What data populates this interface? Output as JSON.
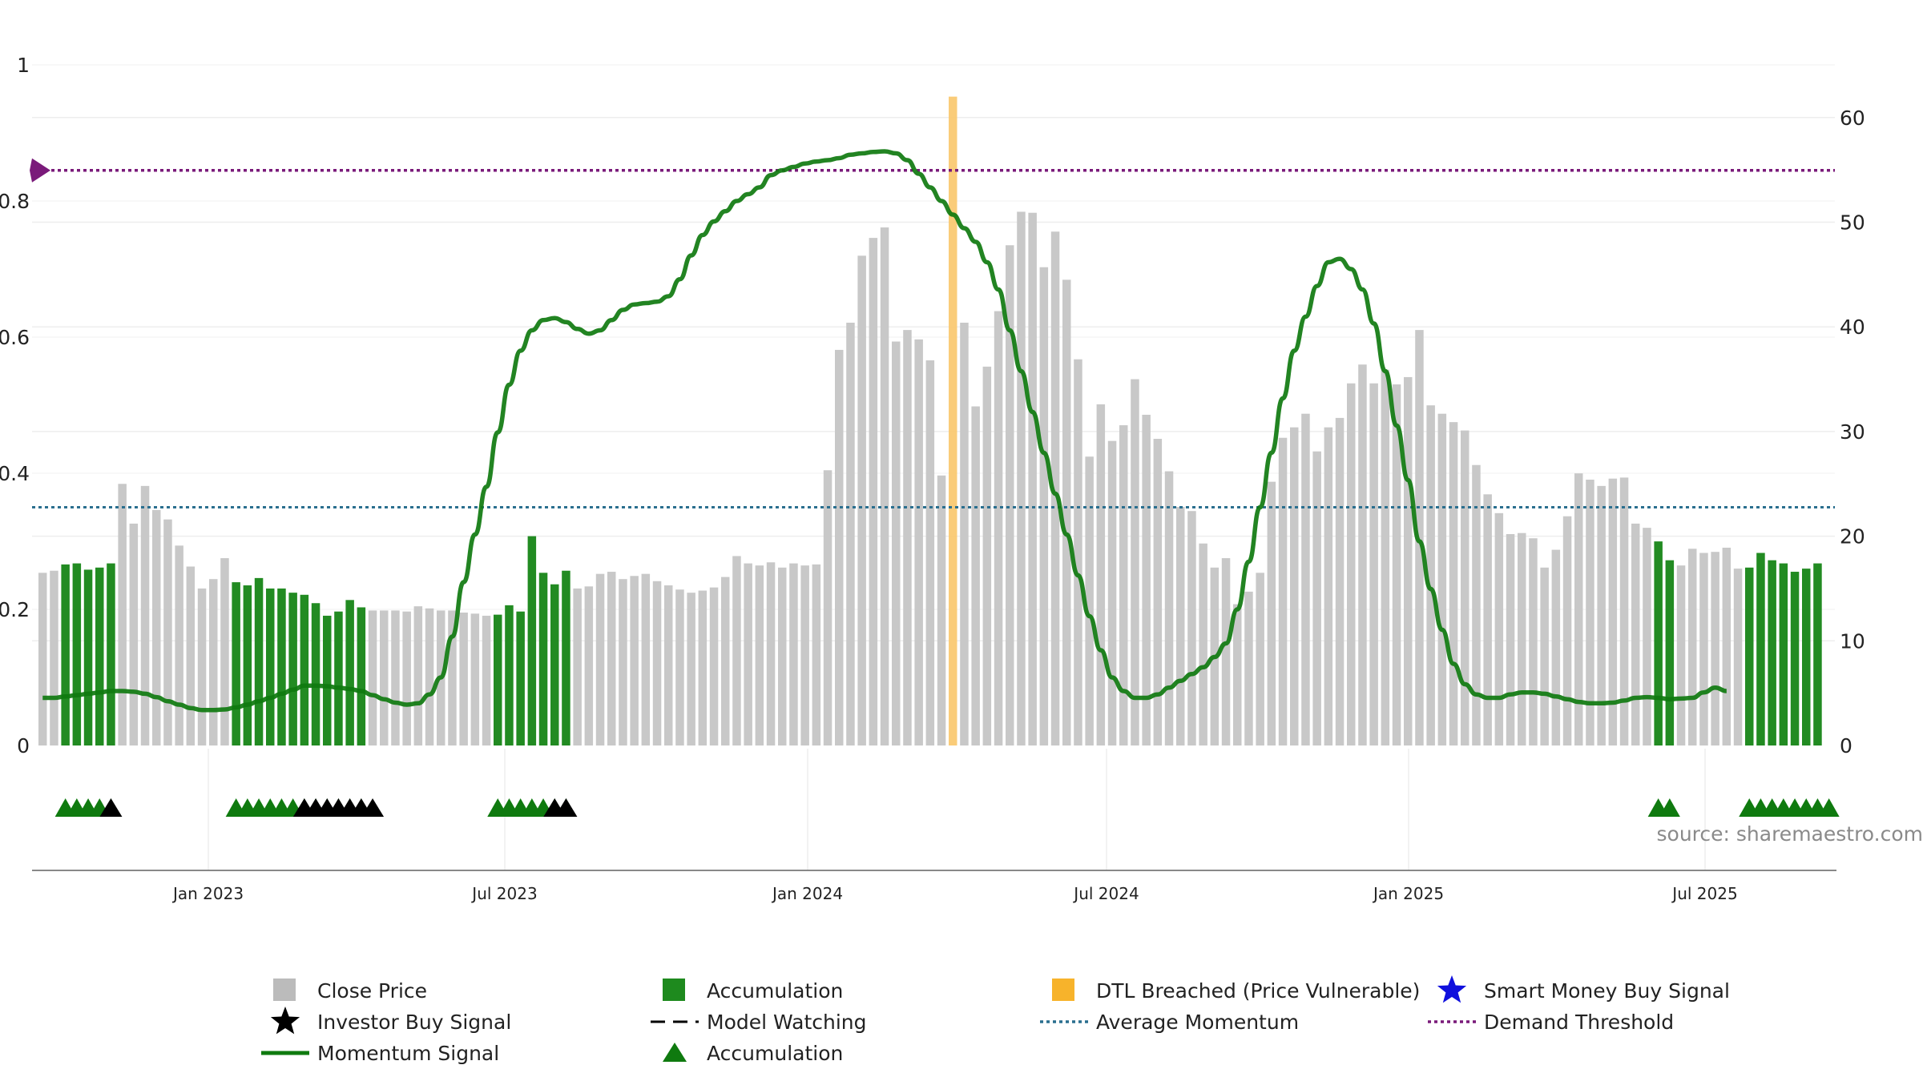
{
  "chart_data": {
    "type": "bar",
    "source_text": "source: sharemaestro.com",
    "x_ticks": [
      "Jan 2023",
      "Jul 2023",
      "Jan 2024",
      "Jul 2024",
      "Jan 2025",
      "Jul 2025"
    ],
    "left_axis": {
      "ticks": [
        "0",
        "0.2",
        "0.4",
        "0.6",
        "0.8",
        "1"
      ],
      "range": [
        0,
        1
      ]
    },
    "right_axis": {
      "ticks": [
        "0",
        "10",
        "20",
        "30",
        "40",
        "50",
        "60"
      ],
      "range": [
        0,
        65
      ]
    },
    "legend": [
      {
        "label": "Close Price",
        "symbol": "square",
        "color": "#bbbbbb"
      },
      {
        "label": "Accumulation",
        "symbol": "square",
        "color": "#1e8a1e"
      },
      {
        "label": "DTL Breached (Price Vulnerable)",
        "symbol": "square",
        "color": "#f7b32b"
      },
      {
        "label": "Smart Money Buy Signal",
        "symbol": "star",
        "color": "#1010dd"
      },
      {
        "label": "Investor Buy Signal",
        "symbol": "star",
        "color": "#000000"
      },
      {
        "label": "Model Watching",
        "symbol": "dash",
        "color": "#000000"
      },
      {
        "label": "Average Momentum",
        "symbol": "dotted",
        "color": "#2a6f8f"
      },
      {
        "label": "Demand Threshold",
        "symbol": "dotted",
        "color": "#7a1a7a"
      },
      {
        "label": "Momentum Signal",
        "symbol": "line",
        "color": "#0f7a0f"
      },
      {
        "label": "Accumulation",
        "symbol": "triangle",
        "color": "#0f7a0f"
      }
    ],
    "colors": {
      "price": "#c8c8c8",
      "accumulation": "#228b22",
      "dtl": "#f9c66a",
      "momentum": "#0f7a0f",
      "avg_momentum": "#2a6f8f",
      "demand": "#7a1a7a"
    },
    "average_momentum": 0.35,
    "demand_threshold": 0.845,
    "dtl_bar_index": 80,
    "close_prices": [
      16.5,
      16.7,
      17.3,
      17.4,
      16.8,
      17.0,
      17.4,
      25.0,
      21.2,
      24.8,
      22.5,
      21.6,
      19.1,
      17.1,
      15.0,
      15.9,
      17.9,
      15.6,
      15.3,
      16.0,
      15.0,
      15.0,
      14.6,
      14.4,
      13.6,
      12.4,
      12.8,
      13.9,
      13.2,
      12.9,
      12.9,
      12.9,
      12.8,
      13.3,
      13.1,
      12.9,
      12.9,
      12.7,
      12.6,
      12.4,
      12.5,
      13.4,
      12.8,
      20.0,
      16.5,
      15.4,
      16.7,
      15.0,
      15.2,
      16.4,
      16.6,
      15.9,
      16.2,
      16.4,
      15.7,
      15.3,
      14.9,
      14.6,
      14.8,
      15.1,
      16.1,
      18.1,
      17.4,
      17.2,
      17.5,
      17.0,
      17.4,
      17.2,
      17.3,
      26.3,
      37.8,
      40.4,
      46.8,
      48.5,
      49.5,
      38.6,
      39.7,
      38.8,
      36.8,
      25.8,
      62.0,
      40.4,
      32.4,
      36.2,
      41.5,
      47.8,
      51.0,
      50.9,
      45.7,
      49.1,
      44.5,
      36.9,
      27.6,
      32.6,
      29.1,
      30.6,
      35.0,
      31.6,
      29.3,
      26.2,
      22.8,
      22.4,
      19.3,
      17.0,
      17.9,
      13.5,
      14.7,
      16.5,
      25.2,
      29.4,
      30.4,
      31.7,
      28.1,
      30.4,
      31.3,
      34.6,
      36.4,
      34.6,
      35.9,
      34.5,
      35.2,
      39.7,
      32.5,
      31.7,
      30.9,
      30.1,
      26.8,
      24.0,
      22.2,
      20.2,
      20.3,
      19.8,
      17.0,
      18.7,
      21.9,
      26.0,
      25.4,
      24.8,
      25.5,
      25.6,
      21.2,
      20.8,
      19.5,
      17.7,
      17.2,
      18.8,
      18.4,
      18.5,
      18.9,
      16.9,
      17.0,
      18.4,
      17.7,
      17.4,
      16.6,
      16.9,
      17.4
    ],
    "accumulation_bar_indices": [
      2,
      3,
      4,
      5,
      6,
      17,
      18,
      19,
      20,
      21,
      22,
      23,
      24,
      25,
      26,
      27,
      28,
      40,
      41,
      42,
      43,
      44,
      45,
      46,
      142,
      143,
      150,
      151,
      152,
      153,
      154,
      155,
      156,
      157
    ],
    "momentum_signal": [
      0.07,
      0.07,
      0.072,
      0.074,
      0.076,
      0.078,
      0.08,
      0.08,
      0.079,
      0.076,
      0.071,
      0.065,
      0.06,
      0.055,
      0.052,
      0.052,
      0.053,
      0.056,
      0.06,
      0.065,
      0.07,
      0.076,
      0.082,
      0.088,
      0.088,
      0.087,
      0.085,
      0.083,
      0.08,
      0.074,
      0.068,
      0.063,
      0.06,
      0.062,
      0.075,
      0.1,
      0.16,
      0.24,
      0.31,
      0.38,
      0.46,
      0.53,
      0.58,
      0.61,
      0.625,
      0.628,
      0.622,
      0.612,
      0.605,
      0.61,
      0.625,
      0.64,
      0.648,
      0.65,
      0.652,
      0.66,
      0.685,
      0.72,
      0.75,
      0.77,
      0.785,
      0.8,
      0.81,
      0.82,
      0.838,
      0.845,
      0.85,
      0.855,
      0.858,
      0.86,
      0.863,
      0.868,
      0.87,
      0.872,
      0.873,
      0.87,
      0.86,
      0.84,
      0.82,
      0.8,
      0.78,
      0.76,
      0.74,
      0.71,
      0.67,
      0.61,
      0.55,
      0.49,
      0.43,
      0.37,
      0.31,
      0.25,
      0.19,
      0.14,
      0.1,
      0.08,
      0.07,
      0.07,
      0.075,
      0.085,
      0.095,
      0.105,
      0.115,
      0.13,
      0.15,
      0.2,
      0.27,
      0.35,
      0.43,
      0.51,
      0.58,
      0.63,
      0.675,
      0.71,
      0.715,
      0.7,
      0.67,
      0.62,
      0.55,
      0.47,
      0.39,
      0.3,
      0.23,
      0.17,
      0.12,
      0.09,
      0.075,
      0.07,
      0.07,
      0.075,
      0.078,
      0.078,
      0.076,
      0.072,
      0.068,
      0.064,
      0.062,
      0.062,
      0.063,
      0.066,
      0.07,
      0.071,
      0.07,
      0.068,
      0.069,
      0.07,
      0.078,
      0.085,
      0.08
    ],
    "signal_rows": {
      "triangles": [
        2,
        3,
        4,
        5,
        6,
        17,
        18,
        19,
        20,
        21,
        22,
        23,
        24,
        25,
        26,
        27,
        28,
        40,
        41,
        42,
        43,
        44,
        45,
        46,
        142,
        143,
        150,
        151,
        152,
        153,
        154,
        155,
        156,
        157
      ],
      "stars": [
        6,
        23,
        24,
        25,
        26,
        27,
        28,
        29,
        45,
        46
      ]
    }
  }
}
